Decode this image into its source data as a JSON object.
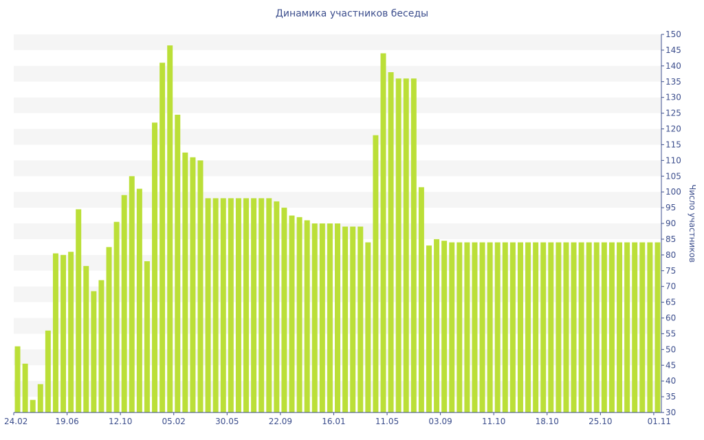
{
  "chart_data": {
    "type": "bar",
    "title": "Динамика участников беседы",
    "xlabel": "",
    "ylabel": "Число участников",
    "y_axis_position": "right",
    "ylim": [
      30,
      150
    ],
    "yticks": [
      30,
      35,
      40,
      45,
      50,
      55,
      60,
      65,
      70,
      75,
      80,
      85,
      90,
      95,
      100,
      105,
      110,
      115,
      120,
      125,
      130,
      135,
      140,
      145,
      150
    ],
    "bar_color": "#bbdf38",
    "band_color": "#f5f5f5",
    "grid": "horizontal bands",
    "x_tick_labels": [
      {
        "index": 0,
        "label": "24.02"
      },
      {
        "index": 7,
        "label": "19.06"
      },
      {
        "index": 14,
        "label": "12.10"
      },
      {
        "index": 21,
        "label": "05.02"
      },
      {
        "index": 28,
        "label": "30.05"
      },
      {
        "index": 35,
        "label": "22.09"
      },
      {
        "index": 42,
        "label": "16.01"
      },
      {
        "index": 49,
        "label": "11.05"
      },
      {
        "index": 56,
        "label": "03.09"
      },
      {
        "index": 63,
        "label": "11.10"
      },
      {
        "index": 70,
        "label": "18.10"
      },
      {
        "index": 77,
        "label": "25.10"
      },
      {
        "index": 84,
        "label": "01.11"
      }
    ],
    "values": [
      51,
      45.5,
      34,
      39,
      56,
      80.5,
      80,
      81,
      94.5,
      76.5,
      68.5,
      72,
      82.5,
      90.5,
      99,
      105,
      101,
      78,
      122,
      141,
      146.5,
      124.5,
      112.5,
      111,
      110,
      98,
      98,
      98,
      98,
      98,
      98,
      98,
      98,
      98,
      97,
      95,
      92.5,
      92,
      91,
      90,
      90,
      90,
      90,
      89,
      89,
      89,
      84,
      118,
      144,
      138,
      136,
      136,
      136,
      101.5,
      83,
      85,
      84.5,
      84,
      84,
      84,
      84,
      84,
      84,
      84,
      84,
      84,
      84,
      84,
      84,
      84,
      84,
      84,
      84,
      84,
      84,
      84,
      84,
      84,
      84,
      84,
      84,
      84,
      84,
      84,
      84
    ]
  }
}
